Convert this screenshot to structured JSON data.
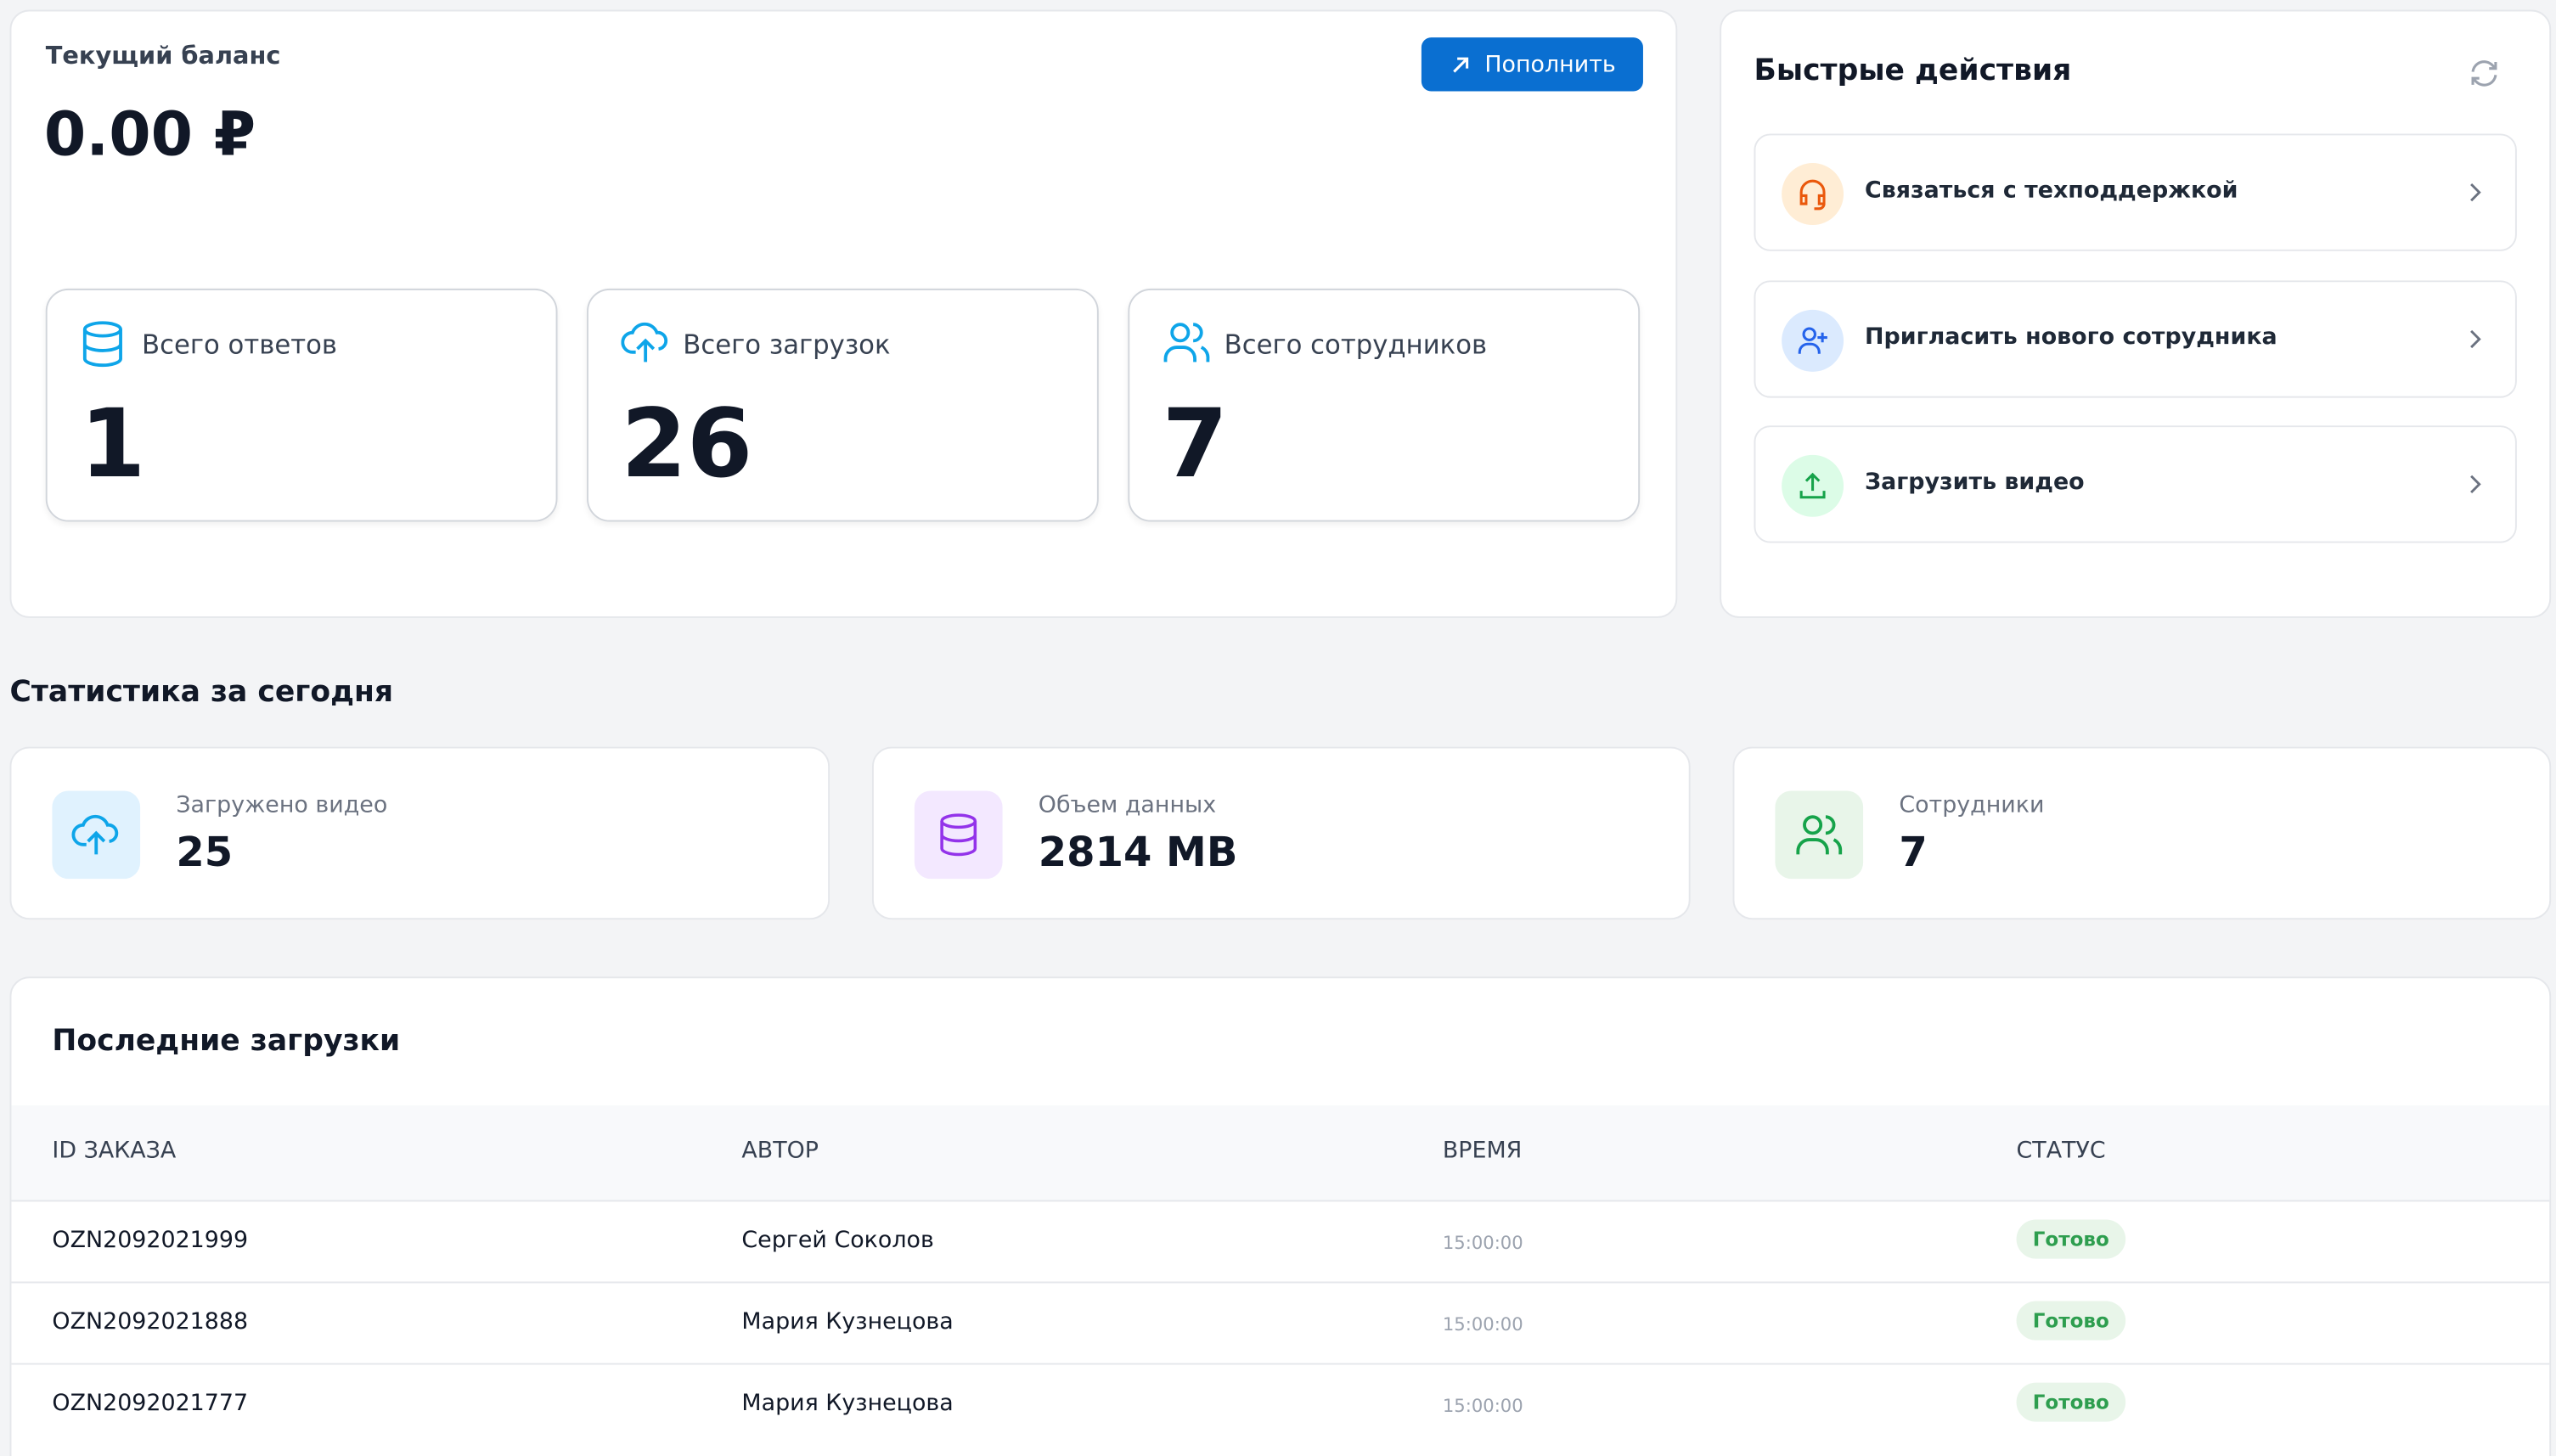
{
  "balance": {
    "label": "Текущий баланс",
    "amount": "0.00 ₽",
    "button": "Пополнить"
  },
  "totals": [
    {
      "label": "Всего ответов",
      "value": "1"
    },
    {
      "label": "Всего загрузок",
      "value": "26"
    },
    {
      "label": "Всего сотрудников",
      "value": "7"
    }
  ],
  "quick_actions": {
    "title": "Быстрые действия",
    "items": [
      "Связаться с техподдержкой",
      "Пригласить нового сотрудника",
      "Загрузить видео"
    ]
  },
  "today": {
    "title": "Статистика за сегодня",
    "cards": [
      {
        "label": "Загружено видео",
        "value": "25"
      },
      {
        "label": "Объем данных",
        "value": "2814 MB"
      },
      {
        "label": "Сотрудники",
        "value": "7"
      }
    ]
  },
  "recent": {
    "title": "Последние загрузки",
    "columns": [
      "ID ЗАКАЗА",
      "АВТОР",
      "ВРЕМЯ",
      "СТАТУС"
    ],
    "rows": [
      [
        "OZN2092021999",
        "Сергей Соколов",
        "15:00:00",
        "Готово"
      ],
      [
        "OZN2092021888",
        "Мария Кузнецова",
        "15:00:00",
        "Готово"
      ],
      [
        "OZN2092021777",
        "Мария Кузнецова",
        "15:00:00",
        "Готово"
      ]
    ]
  }
}
